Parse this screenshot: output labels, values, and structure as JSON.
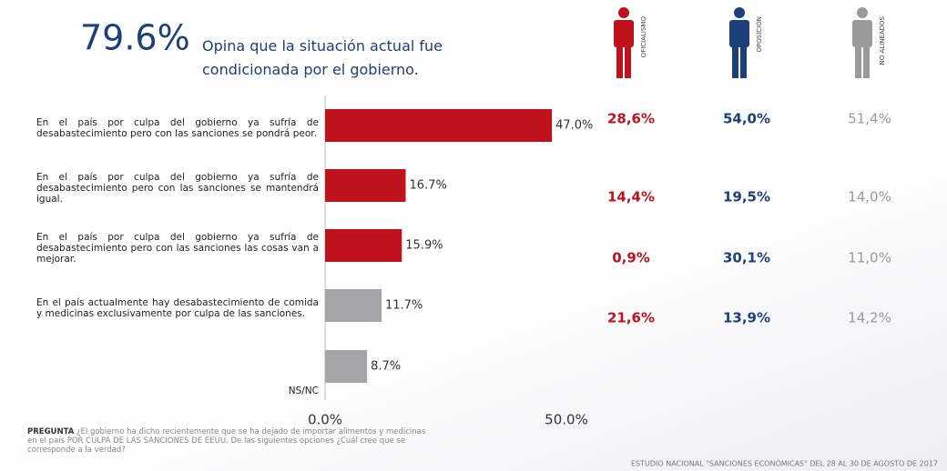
{
  "headline_figure": "79.6%",
  "headline_text": "Opina que la situación actual fue condicionada por el gobierno.",
  "chart_data": {
    "type": "bar",
    "orientation": "horizontal",
    "categories": [
      "En el país por culpa del gobierno ya sufría de desabastecimiento pero con las sanciones se pondrá peor.",
      "En el país por culpa del gobierno ya sufría de desabastecimiento pero con las sanciones se mantendrá igual.",
      "En el país por culpa del gobierno ya sufría de desabastecimiento pero con las sanciones las cosas van a mejorar.",
      "En el país actualmente hay desabastecimiento de comida y medicinas exclusivamente por culpa de las sanciones.",
      "NS/NC"
    ],
    "values": [
      47.0,
      16.7,
      15.9,
      11.7,
      8.7
    ],
    "value_labels": [
      "47.0%",
      "16.7%",
      "15.9%",
      "11.7%",
      "8.7%"
    ],
    "colors": [
      "#c0121d",
      "#c0121d",
      "#c0121d",
      "#a5a5a8",
      "#a5a5a8"
    ],
    "xlim": [
      0,
      50
    ],
    "xticks": [
      {
        "value": 0,
        "label": "0.0%"
      },
      {
        "value": 50,
        "label": "50.0%"
      }
    ],
    "groups": [
      {
        "name": "OFICIALISMO",
        "color": "#c0121d",
        "values": [
          28.6,
          14.4,
          0.9,
          21.6
        ],
        "value_labels": [
          "28,6%",
          "14,4%",
          "0,9%",
          "21,6%"
        ]
      },
      {
        "name": "OPOSICIÓN",
        "color": "#1d3f7a",
        "values": [
          54.0,
          19.5,
          30.1,
          13.9
        ],
        "value_labels": [
          "54,0%",
          "19,5%",
          "30,1%",
          "13,9%"
        ]
      },
      {
        "name": "NO ALINEADOS",
        "color": "#9a9a9a",
        "values": [
          51.4,
          14.0,
          11.0,
          14.2
        ],
        "value_labels": [
          "51,4%",
          "14,0%",
          "11,0%",
          "14,2%"
        ]
      }
    ]
  },
  "question_label": "PREGUNTA",
  "question": "¿El gobierno ha dicho recientemente que se ha dejado de importar alimentos y medicinas en el país POR CULPA DE LAS SANCIONES DE EEUU. De las siguientes opciones ¿Cuál cree que se corresponde a la verdad?",
  "footer": "ESTUDIO NACIONAL \"SANCIONES ECONÓMICAS\" DEL 28 AL 30  DE AGOSTO DE 2017"
}
